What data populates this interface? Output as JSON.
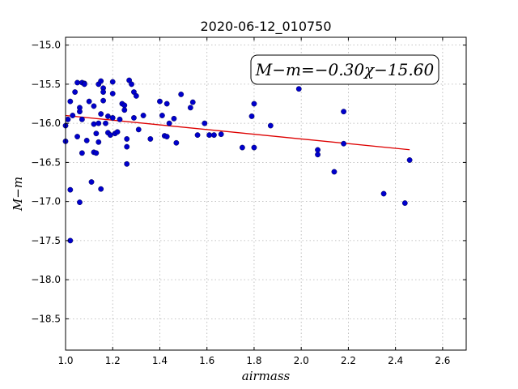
{
  "chart_data": {
    "type": "scatter",
    "title": "2020-06-12_010750",
    "xlabel": "airmass",
    "ylabel": "M−m",
    "xlim": [
      1.0,
      2.7
    ],
    "ylim": [
      -18.9,
      -14.9
    ],
    "y_inverted": true,
    "grid": true,
    "x_ticks": [
      1.0,
      1.2,
      1.4,
      1.6,
      1.8,
      2.0,
      2.2,
      2.4,
      2.6
    ],
    "x_tick_labels": [
      "1.0",
      "1.2",
      "1.4",
      "1.6",
      "1.8",
      "2.0",
      "2.2",
      "2.4",
      "2.6"
    ],
    "y_ticks": [
      -15.0,
      -15.5,
      -16.0,
      -16.5,
      -17.0,
      -17.5,
      -18.0,
      -18.5
    ],
    "y_tick_labels": [
      "−15.0",
      "−15.5",
      "−16.0",
      "−16.5",
      "−17.0",
      "−17.5",
      "−18.0",
      "−18.5"
    ],
    "annotation": "M−m=−0.30χ−15.60",
    "annotation_placement": "top-right",
    "points_color": "#0000cc",
    "fit_color": "#dd0000",
    "fit": {
      "slope": -0.3,
      "intercept": -15.6,
      "x_range": [
        1.0,
        2.46
      ]
    },
    "points": [
      [
        1.0,
        -16.03
      ],
      [
        1.0,
        -16.23
      ],
      [
        1.01,
        -15.95
      ],
      [
        1.02,
        -15.72
      ],
      [
        1.02,
        -16.85
      ],
      [
        1.02,
        -17.5
      ],
      [
        1.03,
        -15.9
      ],
      [
        1.04,
        -15.6
      ],
      [
        1.05,
        -15.48
      ],
      [
        1.05,
        -16.17
      ],
      [
        1.06,
        -15.8
      ],
      [
        1.06,
        -15.85
      ],
      [
        1.06,
        -17.01
      ],
      [
        1.07,
        -15.48
      ],
      [
        1.07,
        -15.95
      ],
      [
        1.07,
        -16.38
      ],
      [
        1.08,
        -15.49
      ],
      [
        1.08,
        -15.5
      ],
      [
        1.09,
        -16.22
      ],
      [
        1.1,
        -15.72
      ],
      [
        1.11,
        -16.75
      ],
      [
        1.12,
        -15.78
      ],
      [
        1.12,
        -16.01
      ],
      [
        1.12,
        -16.37
      ],
      [
        1.13,
        -16.38
      ],
      [
        1.13,
        -16.13
      ],
      [
        1.14,
        -16.24
      ],
      [
        1.14,
        -16.0
      ],
      [
        1.14,
        -15.5
      ],
      [
        1.15,
        -16.84
      ],
      [
        1.15,
        -15.46
      ],
      [
        1.15,
        -15.88
      ],
      [
        1.16,
        -15.55
      ],
      [
        1.16,
        -15.6
      ],
      [
        1.16,
        -15.71
      ],
      [
        1.17,
        -16.0
      ],
      [
        1.18,
        -15.91
      ],
      [
        1.18,
        -16.12
      ],
      [
        1.19,
        -16.15
      ],
      [
        1.2,
        -15.93
      ],
      [
        1.2,
        -15.62
      ],
      [
        1.2,
        -15.47
      ],
      [
        1.21,
        -16.13
      ],
      [
        1.22,
        -16.11
      ],
      [
        1.23,
        -15.95
      ],
      [
        1.24,
        -15.75
      ],
      [
        1.25,
        -15.77
      ],
      [
        1.25,
        -15.83
      ],
      [
        1.26,
        -16.3
      ],
      [
        1.26,
        -16.2
      ],
      [
        1.26,
        -16.52
      ],
      [
        1.27,
        -15.45
      ],
      [
        1.28,
        -15.5
      ],
      [
        1.29,
        -15.6
      ],
      [
        1.29,
        -15.93
      ],
      [
        1.3,
        -15.65
      ],
      [
        1.31,
        -16.08
      ],
      [
        1.33,
        -15.9
      ],
      [
        1.36,
        -16.2
      ],
      [
        1.4,
        -15.72
      ],
      [
        1.41,
        -15.9
      ],
      [
        1.42,
        -16.16
      ],
      [
        1.43,
        -15.75
      ],
      [
        1.43,
        -16.17
      ],
      [
        1.44,
        -16.0
      ],
      [
        1.46,
        -15.94
      ],
      [
        1.47,
        -16.25
      ],
      [
        1.49,
        -15.63
      ],
      [
        1.53,
        -15.8
      ],
      [
        1.54,
        -15.73
      ],
      [
        1.56,
        -16.15
      ],
      [
        1.59,
        -16.0
      ],
      [
        1.61,
        -16.15
      ],
      [
        1.63,
        -16.15
      ],
      [
        1.66,
        -16.14
      ],
      [
        1.75,
        -16.31
      ],
      [
        1.79,
        -15.91
      ],
      [
        1.8,
        -15.75
      ],
      [
        1.8,
        -16.31
      ],
      [
        1.87,
        -16.03
      ],
      [
        1.99,
        -15.56
      ],
      [
        2.07,
        -16.4
      ],
      [
        2.07,
        -16.34
      ],
      [
        2.14,
        -16.62
      ],
      [
        2.18,
        -16.26
      ],
      [
        2.18,
        -15.85
      ],
      [
        2.35,
        -16.9
      ],
      [
        2.44,
        -17.02
      ],
      [
        2.46,
        -16.47
      ]
    ]
  }
}
